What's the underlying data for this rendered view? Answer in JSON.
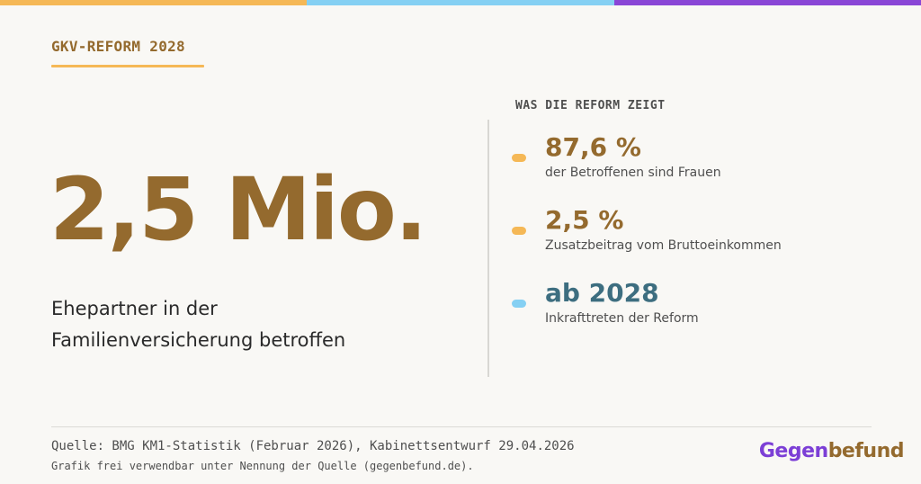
{
  "colors": {
    "background": "#f9f8f5",
    "bar_orange": "#f5b856",
    "bar_blue": "#85d0f3",
    "bar_purple": "#8a46d6",
    "brown": "#946a2e",
    "dark_text": "#2a2a2a",
    "gray_text": "#4f4f4f",
    "teal": "#3d6e80",
    "divider": "#d8d7d3",
    "rule": "#dcdbd6",
    "logo_purple": "#7c3fd6",
    "logo_brown": "#946a2e"
  },
  "header": {
    "kicker": "GKV-REFORM 2028"
  },
  "hero": {
    "number": "2,5 Mio.",
    "label_line1": "Ehepartner in der",
    "label_line2": "Familienversicherung betroffen"
  },
  "findings": {
    "title": "WAS DIE REFORM ZEIGT",
    "items": [
      {
        "value": "87,6 %",
        "description": "der Betroffenen sind Frauen",
        "dot_color": "#f5b856",
        "value_color": "#946a2e"
      },
      {
        "value": "2,5 %",
        "description": "Zusatzbeitrag vom Bruttoeinkommen",
        "dot_color": "#f5b856",
        "value_color": "#946a2e"
      },
      {
        "value": "ab 2028",
        "description": "Inkrafttreten der Reform",
        "dot_color": "#85d0f3",
        "value_color": "#3d6e80"
      }
    ]
  },
  "footer": {
    "source": "Quelle: BMG KM1-Statistik (Februar 2026), Kabinettsentwurf 29.04.2026",
    "license": "Grafik frei verwendbar unter Nennung der Quelle (gegenbefund.de).",
    "logo_part1": "Gegen",
    "logo_part2": "befund"
  }
}
